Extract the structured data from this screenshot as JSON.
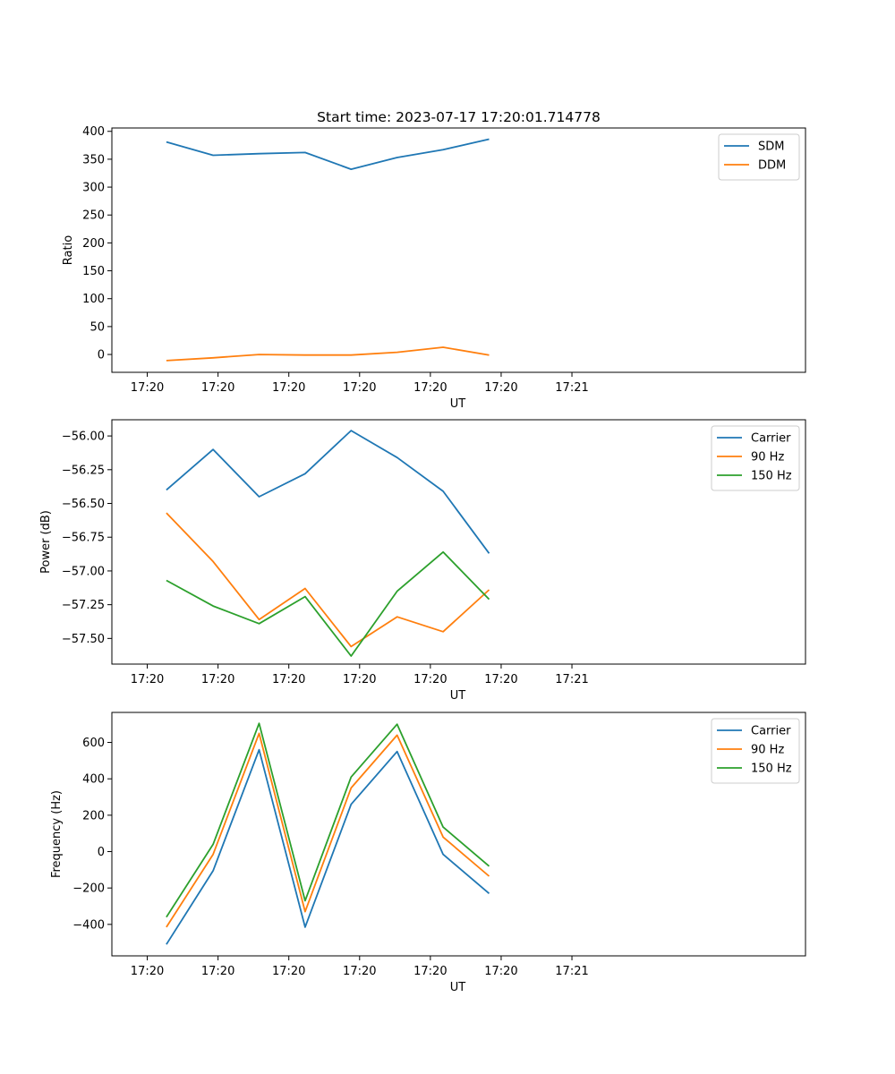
{
  "chart_data": [
    {
      "type": "line",
      "title": "Start time: 2023-07-17 17:20:01.714778",
      "xlabel": "UT",
      "ylabel": "Ratio",
      "xlim": [
        -0.5,
        9.3
      ],
      "x": [
        0.27,
        0.93,
        1.58,
        2.23,
        2.88,
        3.53,
        4.18,
        4.83
      ],
      "xticks": [
        0,
        1,
        2,
        3,
        4,
        5,
        6
      ],
      "xtick_labels": [
        "17:20",
        "17:20",
        "17:20",
        "17:20",
        "17:20",
        "17:20",
        "17:21"
      ],
      "ylim": [
        -32,
        406
      ],
      "yticks": [
        0,
        50,
        100,
        150,
        200,
        250,
        300,
        350,
        400
      ],
      "ytick_labels": [
        "0",
        "50",
        "100",
        "150",
        "200",
        "250",
        "300",
        "350",
        "400"
      ],
      "legend_position": "top-right",
      "series": [
        {
          "name": "SDM",
          "color": "#1f77b4",
          "values": [
            381,
            357,
            360,
            362,
            332,
            353,
            367,
            386
          ]
        },
        {
          "name": "DDM",
          "color": "#ff7f0e",
          "values": [
            -11,
            -6,
            0,
            -1,
            -1,
            4,
            13,
            -1
          ]
        }
      ]
    },
    {
      "type": "line",
      "title": "",
      "xlabel": "UT",
      "ylabel": "Power (dB)",
      "xlim": [
        -0.5,
        9.3
      ],
      "x": [
        0.27,
        0.93,
        1.58,
        2.23,
        2.88,
        3.53,
        4.18,
        4.83
      ],
      "xticks": [
        0,
        1,
        2,
        3,
        4,
        5,
        6
      ],
      "xtick_labels": [
        "17:20",
        "17:20",
        "17:20",
        "17:20",
        "17:20",
        "17:20",
        "17:21"
      ],
      "ylim": [
        -57.69,
        -55.88
      ],
      "yticks": [
        -57.5,
        -57.25,
        -57.0,
        -56.75,
        -56.5,
        -56.25,
        -56.0
      ],
      "ytick_labels": [
        "−57.50",
        "−57.25",
        "−57.00",
        "−56.75",
        "−56.50",
        "−56.25",
        "−56.00"
      ],
      "legend_position": "top-right",
      "series": [
        {
          "name": "Carrier",
          "color": "#1f77b4",
          "values": [
            -56.4,
            -56.1,
            -56.45,
            -56.28,
            -55.96,
            -56.16,
            -56.41,
            -56.87
          ]
        },
        {
          "name": "90 Hz",
          "color": "#ff7f0e",
          "values": [
            -56.57,
            -56.93,
            -57.36,
            -57.13,
            -57.56,
            -57.34,
            -57.45,
            -57.14
          ]
        },
        {
          "name": "150 Hz",
          "color": "#2ca02c",
          "values": [
            -57.07,
            -57.26,
            -57.39,
            -57.19,
            -57.63,
            -57.15,
            -56.86,
            -57.21
          ]
        }
      ]
    },
    {
      "type": "line",
      "title": "",
      "xlabel": "UT",
      "ylabel": "Frequency (Hz)",
      "xlim": [
        -0.5,
        9.3
      ],
      "x": [
        0.27,
        0.93,
        1.58,
        2.23,
        2.88,
        3.53,
        4.18,
        4.83
      ],
      "xticks": [
        0,
        1,
        2,
        3,
        4,
        5,
        6
      ],
      "xtick_labels": [
        "17:20",
        "17:20",
        "17:20",
        "17:20",
        "17:20",
        "17:20",
        "17:21"
      ],
      "ylim": [
        -573,
        765
      ],
      "yticks": [
        -400,
        -200,
        0,
        200,
        400,
        600
      ],
      "ytick_labels": [
        "−400",
        "−200",
        "0",
        "200",
        "400",
        "600"
      ],
      "legend_position": "top-right",
      "series": [
        {
          "name": "Carrier",
          "color": "#1f77b4",
          "values": [
            -510,
            -105,
            560,
            -415,
            260,
            550,
            -15,
            -230
          ]
        },
        {
          "name": "90 Hz",
          "color": "#ff7f0e",
          "values": [
            -415,
            -15,
            650,
            -330,
            350,
            640,
            80,
            -135
          ]
        },
        {
          "name": "150 Hz",
          "color": "#2ca02c",
          "values": [
            -360,
            40,
            705,
            -270,
            410,
            700,
            135,
            -80
          ]
        }
      ]
    }
  ]
}
